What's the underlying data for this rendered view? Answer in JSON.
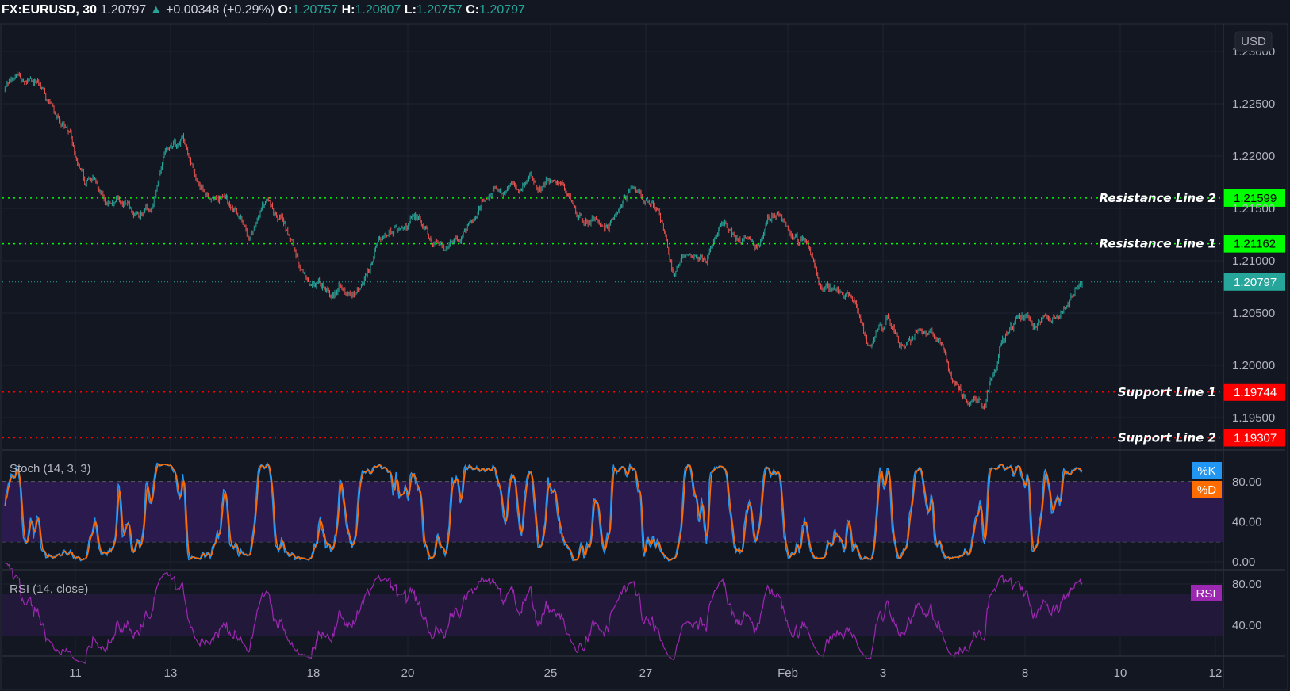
{
  "header": {
    "symbol": "FX:EURUSD, 30",
    "last": "1.20797",
    "change": "+0.00348 (+0.29%)",
    "o_label": "O:",
    "o": "1.20757",
    "h_label": "H:",
    "h": "1.20807",
    "l_label": "L:",
    "l": "1.20757",
    "c_label": "C:",
    "c": "1.20797"
  },
  "currency_button": "USD",
  "colors": {
    "background": "#131722",
    "up": "#26a69a",
    "down": "#ef5350",
    "resistance": "#00ff00",
    "support": "#ff0000",
    "stoch_k": "#2196f3",
    "stoch_d": "#ff6d00",
    "rsi": "#9c27b0"
  },
  "chart_data": [
    {
      "type": "candlestick",
      "title": "FX:EURUSD, 30",
      "interval": "30",
      "y_ticks": [
        "1.23000",
        "1.22500",
        "1.22000",
        "1.21500",
        "1.21000",
        "1.20500",
        "1.20000",
        "1.19500"
      ],
      "ylim": [
        1.1925,
        1.2327
      ],
      "x_ticks": [
        "11",
        "13",
        "18",
        "20",
        "25",
        "27",
        "Feb",
        "3",
        "8",
        "10",
        "12"
      ],
      "grid": true,
      "approx_closes": [
        1.22613,
        1.22746,
        1.22707,
        1.22471,
        1.22235,
        1.21725,
        1.21646,
        1.21607,
        1.21449,
        1.21489,
        1.22078,
        1.22157,
        1.21685,
        1.21607,
        1.21489,
        1.21214,
        1.21567,
        1.21434,
        1.20978,
        1.20781,
        1.20663,
        1.20703,
        1.20781,
        1.21214,
        1.21332,
        1.21434,
        1.21214,
        1.21096,
        1.21214,
        1.21449,
        1.21685,
        1.21725,
        1.21764,
        1.21725,
        1.21748,
        1.21449,
        1.2141,
        1.21292,
        1.21607,
        1.21622,
        1.21489,
        1.2086,
        1.21056,
        1.20978,
        1.21371,
        1.21214,
        1.21135,
        1.21449,
        1.21292,
        1.21214,
        1.20742,
        1.20742,
        1.20624,
        1.20192,
        1.20451,
        1.20192,
        1.20349,
        1.20271,
        1.19877,
        1.19641,
        1.19602,
        1.20192,
        1.20467,
        1.20349,
        1.20428,
        1.20546,
        1.20797
      ],
      "current_price": "1.20797",
      "horizontal_lines": [
        {
          "label": "Resistance Line 2",
          "value": "1.21599",
          "kind": "resistance"
        },
        {
          "label": "Resistance Line 1",
          "value": "1.21162",
          "kind": "resistance"
        },
        {
          "label": "Support Line 1",
          "value": "1.19744",
          "kind": "support"
        },
        {
          "label": "Support Line 2",
          "value": "1.19307",
          "kind": "support"
        }
      ]
    },
    {
      "type": "line",
      "title": "Stoch (14, 3, 3)",
      "series": [
        {
          "name": "%K"
        },
        {
          "name": "%D"
        }
      ],
      "y_ticks": [
        "80.00",
        "40.00",
        "0.00"
      ],
      "band": [
        20,
        80
      ]
    },
    {
      "type": "line",
      "title": "RSI (14, close)",
      "series": [
        {
          "name": "RSI"
        }
      ],
      "y_ticks": [
        "80.00",
        "40.00"
      ],
      "band": [
        30,
        70
      ]
    }
  ]
}
